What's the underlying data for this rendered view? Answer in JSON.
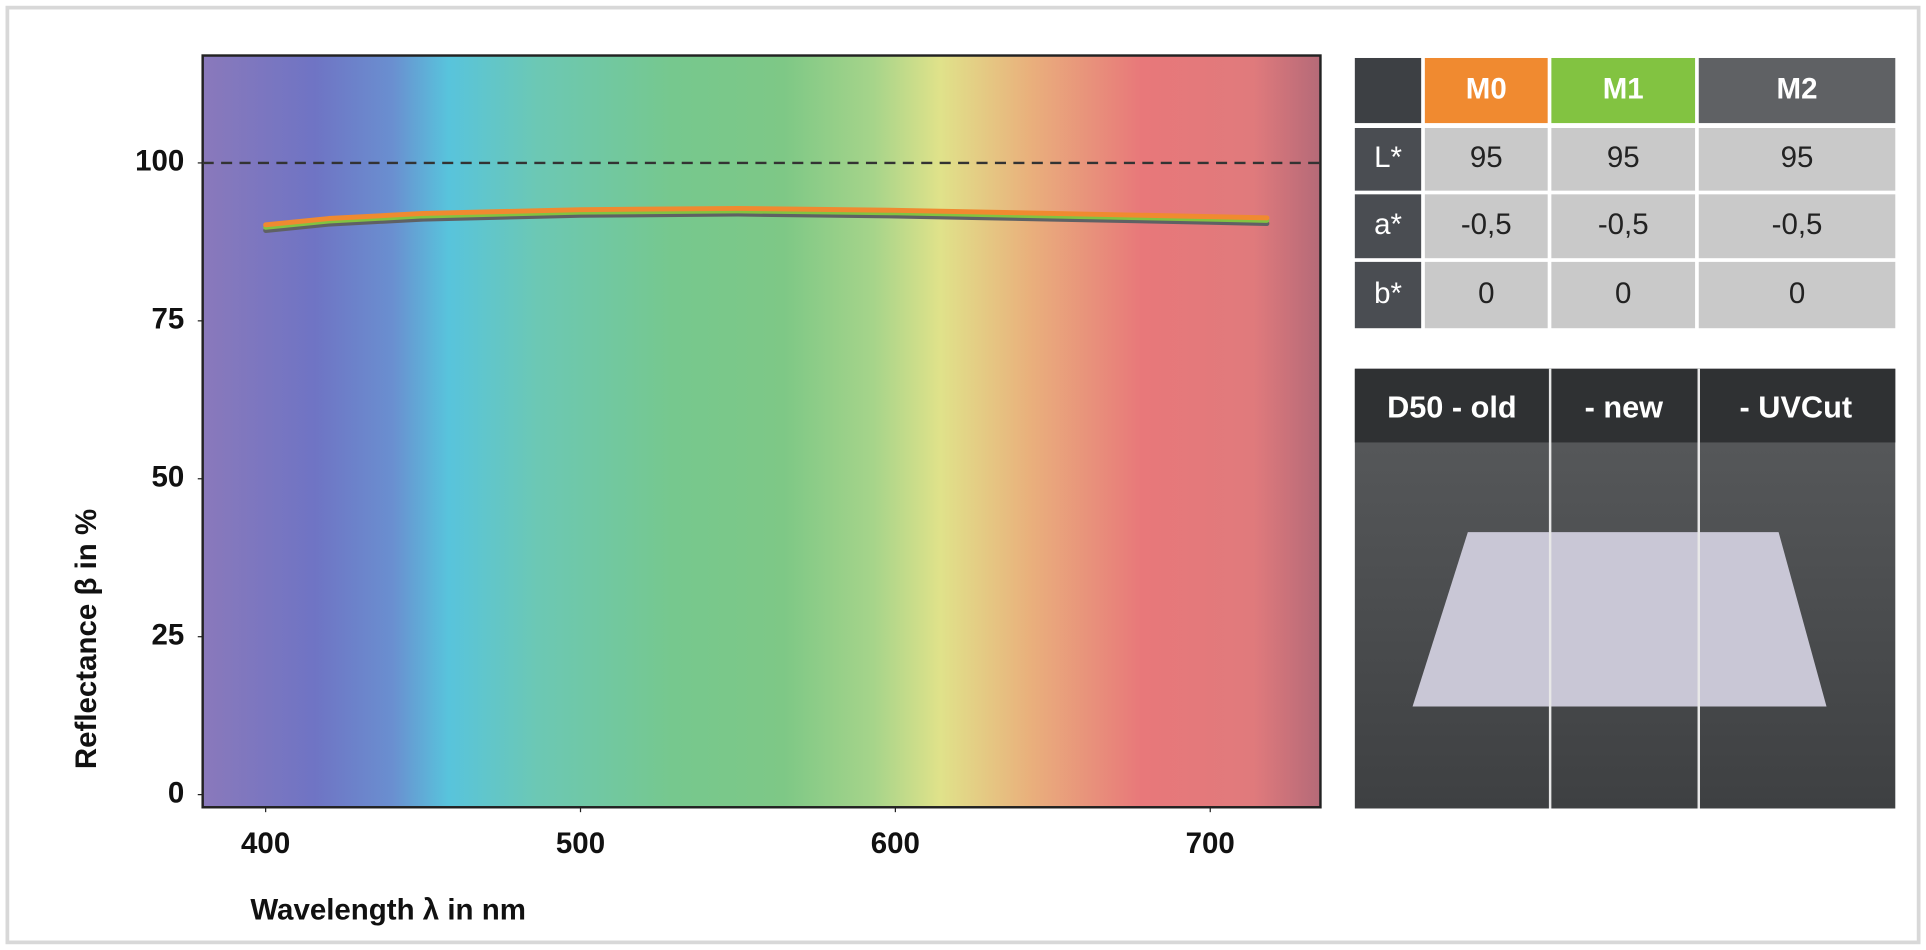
{
  "chart_data": {
    "type": "line",
    "x_label": "Wavelength λ in nm",
    "y_label": "Reflectance β in %",
    "x": [
      400,
      420,
      450,
      500,
      550,
      600,
      650,
      700,
      718
    ],
    "series": [
      {
        "name": "M0",
        "color": "#f08a30",
        "values": [
          90.2,
          91.2,
          92.0,
          92.6,
          92.8,
          92.5,
          92.0,
          91.5,
          91.3
        ]
      },
      {
        "name": "M1",
        "color": "#82c341",
        "values": [
          89.8,
          90.8,
          91.6,
          92.2,
          92.4,
          92.1,
          91.6,
          91.1,
          90.9
        ]
      },
      {
        "name": "M2",
        "color": "#5f6164",
        "values": [
          89.3,
          90.3,
          91.1,
          91.7,
          91.9,
          91.6,
          91.1,
          90.6,
          90.4
        ]
      }
    ],
    "reference_line": 100,
    "xlim": [
      380,
      735
    ],
    "ylim": [
      -2,
      117
    ],
    "xticks": [
      400,
      500,
      600,
      700
    ],
    "yticks": [
      0,
      25,
      50,
      75,
      100
    ]
  },
  "table": {
    "columns": [
      {
        "name": "M0",
        "color": "#f08a30"
      },
      {
        "name": "M1",
        "color": "#82c341"
      },
      {
        "name": "M2",
        "color": "#5f6164"
      }
    ],
    "rows": [
      {
        "label": "L*",
        "values": [
          "95",
          "95",
          "95"
        ]
      },
      {
        "label": "a*",
        "values": [
          "-0,5",
          "-0,5",
          "-0,5"
        ]
      },
      {
        "label": "b*",
        "values": [
          "0",
          "0",
          "0"
        ]
      }
    ]
  },
  "photo": {
    "labels": [
      "D50 - old",
      "- new",
      "- UVCut"
    ]
  }
}
